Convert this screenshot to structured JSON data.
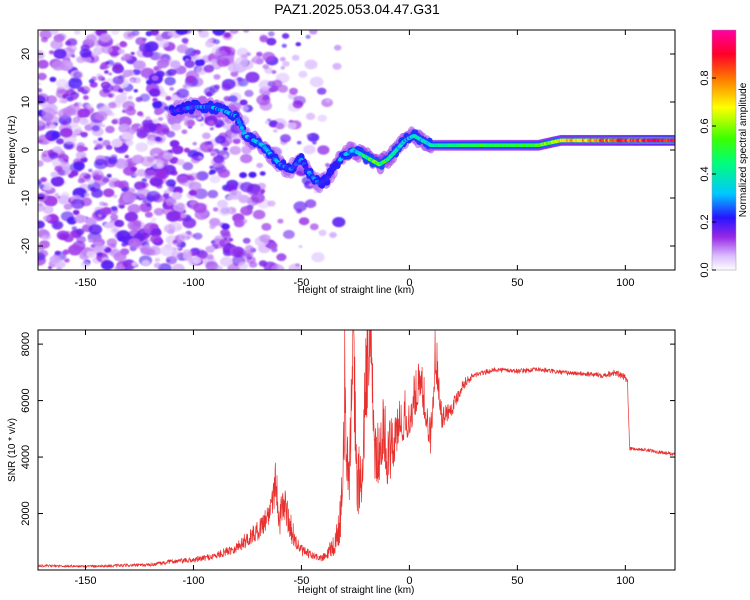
{
  "figure": {
    "title": "PAZ1.2025.053.04.47.G31"
  },
  "chart_data": [
    {
      "type": "heatmap",
      "name": "spectrogram",
      "xlabel": "Height of straight line (km)",
      "ylabel": "Frequency (Hz)",
      "xlim": [
        -172,
        123
      ],
      "ylim": [
        -25,
        25
      ],
      "xticks": [
        -150,
        -100,
        -50,
        0,
        50,
        100
      ],
      "yticks": [
        -20,
        -10,
        0,
        10,
        20
      ],
      "colorbar": {
        "label": "Normalized spectral amplitude",
        "range": [
          0,
          1
        ],
        "ticks": [
          0.0,
          0.2,
          0.4,
          0.6,
          0.8
        ]
      },
      "ridge": {
        "description": "dominant frequency vs height",
        "x": [
          -110,
          -100,
          -92,
          -85,
          -80,
          -76,
          -72,
          -68,
          -64,
          -60,
          -55,
          -50,
          -46,
          -42,
          -38,
          -34,
          -30,
          -26,
          -22,
          -18,
          -14,
          -10,
          -6,
          -2,
          2,
          6,
          10,
          20,
          30,
          40,
          50,
          60,
          70,
          80,
          90,
          100,
          110,
          123
        ],
        "y": [
          8,
          9,
          9,
          8,
          7,
          3,
          2,
          1,
          -1,
          -3,
          -4,
          -2,
          -5,
          -7,
          -6,
          -3,
          -1,
          0,
          -1,
          -2,
          -3,
          -2,
          0,
          2,
          3,
          2,
          1,
          1,
          1,
          1,
          1,
          1,
          2,
          2,
          2,
          2,
          2,
          2
        ],
        "amplitude": [
          0.2,
          0.25,
          0.3,
          0.3,
          0.3,
          0.3,
          0.3,
          0.35,
          0.3,
          0.3,
          0.25,
          0.25,
          0.3,
          0.25,
          0.25,
          0.3,
          0.3,
          0.35,
          0.4,
          0.5,
          0.55,
          0.45,
          0.4,
          0.35,
          0.35,
          0.4,
          0.4,
          0.45,
          0.5,
          0.5,
          0.5,
          0.55,
          0.7,
          0.75,
          0.8,
          0.85,
          0.95,
          0.95
        ]
      },
      "noise": {
        "dense_x_range": [
          -172,
          -100
        ],
        "fade_x_end": -40,
        "amplitude_range": [
          0.0,
          0.2
        ]
      }
    },
    {
      "type": "line",
      "name": "snr",
      "xlabel": "Height of straight line (km)",
      "ylabel": "SNR (10 * v/v)",
      "xlim": [
        -172,
        123
      ],
      "ylim": [
        0,
        8500
      ],
      "xticks": [
        -150,
        -100,
        -50,
        0,
        50,
        100
      ],
      "yticks": [
        2000,
        4000,
        6000,
        8000
      ],
      "color": "#e8312f",
      "series": [
        {
          "name": "SNR",
          "x": [
            -172,
            -150,
            -120,
            -110,
            -100,
            -90,
            -80,
            -75,
            -70,
            -65,
            -62,
            -60,
            -58,
            -55,
            -52,
            -50,
            -45,
            -40,
            -35,
            -32,
            -30,
            -28,
            -26,
            -24,
            -22,
            -20,
            -18,
            -16,
            -14,
            -12,
            -10,
            -8,
            -5,
            0,
            5,
            10,
            12,
            15,
            20,
            25,
            30,
            40,
            50,
            60,
            70,
            80,
            90,
            95,
            100,
            101,
            102,
            110,
            118,
            123
          ],
          "y": [
            150,
            130,
            180,
            300,
            350,
            500,
            800,
            1100,
            1400,
            2000,
            3200,
            1800,
            2400,
            1500,
            900,
            700,
            500,
            400,
            700,
            1500,
            5500,
            3000,
            7000,
            2500,
            3200,
            6200,
            8400,
            3800,
            3600,
            4800,
            3500,
            4000,
            5000,
            5200,
            6500,
            4500,
            7500,
            5400,
            5800,
            6600,
            6900,
            7100,
            7050,
            7100,
            7000,
            6950,
            6900,
            7000,
            6800,
            6700,
            4300,
            4250,
            4150,
            4100
          ],
          "noise_amplitude": [
            40,
            40,
            60,
            80,
            100,
            120,
            200,
            300,
            350,
            500,
            900,
            600,
            700,
            500,
            300,
            200,
            150,
            120,
            300,
            800,
            1800,
            1200,
            1800,
            1000,
            1200,
            1800,
            1200,
            900,
            900,
            1000,
            900,
            900,
            800,
            700,
            600,
            700,
            800,
            400,
            300,
            200,
            100,
            80,
            80,
            80,
            80,
            80,
            100,
            120,
            120,
            100,
            60,
            60,
            60,
            60
          ]
        }
      ]
    }
  ]
}
